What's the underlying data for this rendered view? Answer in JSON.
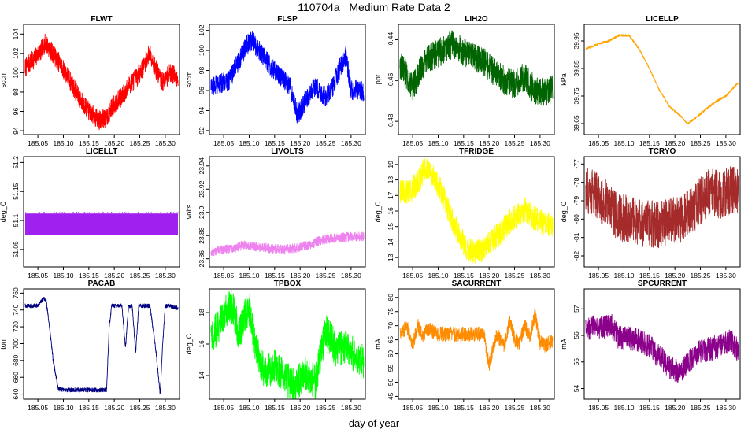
{
  "page": {
    "title": "110704a   Medium Rate Data 2",
    "xlabel": "day of year"
  },
  "chart_data": [
    {
      "type": "line",
      "title": "FLWT",
      "ylabel": "sccm",
      "color": "#ff0000",
      "xticks": [
        185.05,
        185.1,
        185.15,
        185.2,
        185.25,
        185.3
      ],
      "yticks": [
        94,
        96,
        98,
        100,
        102,
        104
      ],
      "ylim": [
        93.6,
        105
      ],
      "noise": 1.0,
      "x": [
        185.025,
        185.04,
        185.055,
        185.065,
        185.075,
        185.09,
        185.11,
        185.13,
        185.15,
        185.17,
        185.185,
        185.2,
        185.215,
        185.23,
        185.245,
        185.26,
        185.27,
        185.28,
        185.295,
        185.31,
        185.325
      ],
      "y": [
        100.5,
        101.3,
        102.2,
        103.1,
        102.3,
        101.2,
        99.5,
        97.5,
        96,
        95.1,
        95.4,
        96.8,
        97.5,
        98.8,
        99.6,
        100.9,
        102.2,
        100.5,
        99,
        100,
        99.5
      ]
    },
    {
      "type": "line",
      "title": "FLSP",
      "ylabel": "sccm",
      "color": "#0000ff",
      "xticks": [
        185.05,
        185.1,
        185.15,
        185.2,
        185.25,
        185.3
      ],
      "yticks": [
        92,
        94,
        96,
        98,
        100,
        102
      ],
      "ylim": [
        91.6,
        102.6
      ],
      "noise": 1.0,
      "x": [
        185.025,
        185.04,
        185.06,
        185.08,
        185.095,
        185.105,
        185.12,
        185.14,
        185.16,
        185.18,
        185.195,
        185.21,
        185.23,
        185.25,
        185.265,
        185.28,
        185.29,
        185.3,
        185.31,
        185.325
      ],
      "y": [
        96.5,
        96.6,
        97,
        99,
        100.5,
        101,
        100,
        98.5,
        97.5,
        96.5,
        93.5,
        95,
        96.5,
        95.3,
        96.5,
        98.5,
        99.5,
        96,
        96.2,
        95.8
      ]
    },
    {
      "type": "line",
      "title": "LIH2O",
      "ylabel": "ppt",
      "color": "#006400",
      "xticks": [
        185.05,
        185.1,
        185.15,
        185.2,
        185.25,
        185.3
      ],
      "yticks": [
        -0.48,
        -0.46,
        -0.44
      ],
      "ylim": [
        -0.4865,
        -0.4325
      ],
      "noise": 0.007,
      "x": [
        185.025,
        185.04,
        185.05,
        185.06,
        185.07,
        185.09,
        185.11,
        185.13,
        185.15,
        185.17,
        185.19,
        185.21,
        185.23,
        185.25,
        185.27,
        185.29,
        185.31,
        185.325
      ],
      "y": [
        -0.452,
        -0.458,
        -0.463,
        -0.458,
        -0.452,
        -0.448,
        -0.445,
        -0.442,
        -0.446,
        -0.449,
        -0.451,
        -0.456,
        -0.46,
        -0.462,
        -0.458,
        -0.465,
        -0.466,
        -0.464
      ]
    },
    {
      "type": "line",
      "title": "LICELLP",
      "ylabel": "kPa",
      "color": "#ffa500",
      "xticks": [
        185.05,
        185.1,
        185.15,
        185.2,
        185.25,
        185.3
      ],
      "yticks": [
        39.65,
        39.75,
        39.85,
        39.95
      ],
      "ylim": [
        39.61,
        40.01
      ],
      "noise": 0.004,
      "x": [
        185.025,
        185.05,
        185.07,
        185.09,
        185.11,
        185.13,
        185.15,
        185.17,
        185.19,
        185.21,
        185.225,
        185.24,
        185.26,
        185.28,
        185.3,
        185.325
      ],
      "y": [
        39.92,
        39.94,
        39.95,
        39.97,
        39.97,
        39.92,
        39.85,
        39.77,
        39.71,
        39.68,
        39.65,
        39.67,
        39.7,
        39.73,
        39.75,
        39.8
      ]
    },
    {
      "type": "band",
      "title": "LICELLT",
      "ylabel": "deg_C",
      "color": "#a020f0",
      "xticks": [
        185.05,
        185.1,
        185.15,
        185.2,
        185.25,
        185.3
      ],
      "yticks": [
        51.05,
        51.1,
        51.15,
        51.2
      ],
      "ylim": [
        51.02,
        51.21
      ],
      "x": [
        185.025,
        185.325
      ],
      "ymin": 51.075,
      "ymax": 51.112
    },
    {
      "type": "line",
      "title": "LIVOLTS",
      "ylabel": "volts",
      "color": "#ee82ee",
      "xticks": [
        185.05,
        185.1,
        185.15,
        185.2,
        185.25,
        185.3
      ],
      "yticks": [
        23.86,
        23.88,
        23.9,
        23.92,
        23.94
      ],
      "ylim": [
        23.853,
        23.948
      ],
      "noise": 0.004,
      "x": [
        185.025,
        185.05,
        185.075,
        185.09,
        185.11,
        185.14,
        185.17,
        185.2,
        185.22,
        185.24,
        185.27,
        185.3,
        185.325
      ],
      "y": [
        23.866,
        23.868,
        23.87,
        23.872,
        23.871,
        23.869,
        23.868,
        23.87,
        23.872,
        23.876,
        23.878,
        23.879,
        23.879
      ]
    },
    {
      "type": "line",
      "title": "TFRIDGE",
      "ylabel": "deg_C",
      "color": "#ffff00",
      "xticks": [
        185.05,
        185.1,
        185.15,
        185.2,
        185.25,
        185.3
      ],
      "yticks": [
        13,
        14,
        15,
        16,
        17,
        18,
        19
      ],
      "ylim": [
        12.4,
        19.5
      ],
      "noise": 0.8,
      "x": [
        185.025,
        185.045,
        185.06,
        185.075,
        185.09,
        185.11,
        185.13,
        185.15,
        185.165,
        185.185,
        185.2,
        185.22,
        185.24,
        185.26,
        185.27,
        185.29,
        185.31,
        185.325
      ],
      "y": [
        17.3,
        17.3,
        17.8,
        18.9,
        18.3,
        17,
        15.2,
        13.9,
        13.4,
        13.5,
        14,
        14.5,
        15.3,
        15.8,
        16.1,
        15.5,
        15.2,
        15
      ]
    },
    {
      "type": "line",
      "title": "TCRYO",
      "ylabel": "deg_C",
      "color": "#a52a2a",
      "xticks": [
        185.05,
        185.1,
        185.15,
        185.2,
        185.25,
        185.3
      ],
      "yticks": [
        -82,
        -81,
        -80,
        -79,
        -78,
        -77
      ],
      "ylim": [
        -82.6,
        -76.6
      ],
      "noise": 1.3,
      "x": [
        185.025,
        185.05,
        185.07,
        185.09,
        185.11,
        185.13,
        185.16,
        185.19,
        185.21,
        185.23,
        185.25,
        185.27,
        185.29,
        185.31,
        185.325
      ],
      "y": [
        -78.4,
        -78.8,
        -79.3,
        -79.9,
        -80,
        -80.2,
        -80.3,
        -80.2,
        -80,
        -79.6,
        -79,
        -78.5,
        -78.7,
        -78.4,
        -78.6
      ]
    },
    {
      "type": "line",
      "title": "PACAB",
      "ylabel": "torr",
      "color": "#000080",
      "xticks": [
        185.05,
        185.1,
        185.15,
        185.2,
        185.25,
        185.3
      ],
      "yticks": [
        640,
        660,
        680,
        700,
        720,
        740,
        760
      ],
      "ylim": [
        634,
        765
      ],
      "noise": 2.5,
      "x": [
        185.025,
        185.05,
        185.06,
        185.066,
        185.072,
        185.08,
        185.09,
        185.1,
        185.15,
        185.185,
        185.19,
        185.195,
        185.205,
        185.215,
        185.222,
        185.228,
        185.235,
        185.242,
        185.248,
        185.258,
        185.27,
        185.282,
        185.29,
        185.295,
        185.3,
        185.31,
        185.325
      ],
      "y": [
        745,
        745,
        753,
        752,
        725,
        680,
        646,
        645,
        645,
        645,
        720,
        745,
        745,
        745,
        695,
        745,
        745,
        690,
        745,
        745,
        745,
        690,
        640,
        700,
        745,
        745,
        742
      ]
    },
    {
      "type": "line",
      "title": "TPBOX",
      "ylabel": "deg_C",
      "color": "#00ff00",
      "xticks": [
        185.05,
        185.1,
        185.15,
        185.2,
        185.25,
        185.3
      ],
      "yticks": [
        14,
        16,
        18
      ],
      "ylim": [
        12.5,
        19.5
      ],
      "noise": 1.1,
      "x": [
        185.025,
        185.04,
        185.05,
        185.06,
        185.07,
        185.08,
        185.09,
        185.1,
        185.11,
        185.13,
        185.15,
        185.17,
        185.19,
        185.21,
        185.23,
        185.25,
        185.26,
        185.27,
        185.29,
        185.31,
        185.325
      ],
      "y": [
        16.3,
        17.2,
        17.7,
        18.5,
        18.2,
        16.5,
        17.7,
        18.3,
        16.2,
        14.2,
        14.6,
        13.8,
        13.4,
        14.2,
        13.6,
        16.8,
        16.4,
        15.6,
        15.8,
        15.2,
        14.8
      ]
    },
    {
      "type": "line",
      "title": "SACURRENT",
      "ylabel": "mA",
      "color": "#ff8c00",
      "xticks": [
        185.05,
        185.1,
        185.15,
        185.2,
        185.25,
        185.3
      ],
      "yticks": [
        45,
        50,
        55,
        60,
        65,
        70,
        75,
        80
      ],
      "ylim": [
        44,
        83
      ],
      "noise": 2.6,
      "x": [
        185.025,
        185.04,
        185.05,
        185.06,
        185.07,
        185.08,
        185.1,
        185.12,
        185.15,
        185.17,
        185.19,
        185.2,
        185.215,
        185.23,
        185.24,
        185.25,
        185.26,
        185.27,
        185.28,
        185.29,
        185.3,
        185.31,
        185.325
      ],
      "y": [
        68,
        69,
        63,
        70,
        66,
        69,
        67,
        67,
        67,
        67,
        67,
        56,
        67,
        63,
        72,
        65,
        64,
        70,
        66,
        74,
        64,
        63,
        65
      ]
    },
    {
      "type": "line",
      "title": "SPCURRENT",
      "ylabel": "mA",
      "color": "#8b008b",
      "xticks": [
        185.05,
        185.1,
        185.15,
        185.2,
        185.25,
        185.3
      ],
      "yticks": [
        54,
        55,
        56,
        57
      ],
      "ylim": [
        53.6,
        57.75
      ],
      "noise": 0.45,
      "x": [
        185.025,
        185.05,
        185.075,
        185.09,
        185.11,
        185.13,
        185.15,
        185.17,
        185.19,
        185.21,
        185.23,
        185.25,
        185.27,
        185.29,
        185.31,
        185.325
      ],
      "y": [
        56.3,
        56.3,
        56.4,
        55.9,
        55.9,
        55.8,
        55.6,
        55.2,
        54.8,
        54.6,
        55.1,
        55.4,
        55.5,
        55.6,
        55.8,
        55.4
      ]
    }
  ]
}
